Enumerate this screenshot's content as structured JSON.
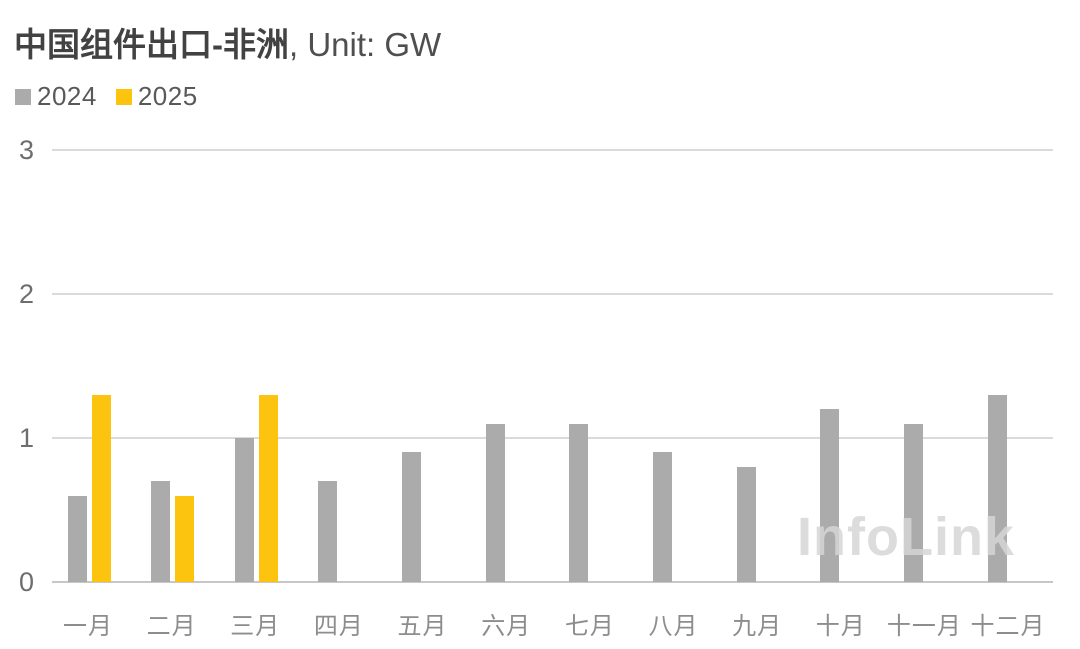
{
  "header": {
    "title_main": "中国组件出口-非洲",
    "title_suffix": ", Unit: GW"
  },
  "legend": {
    "items": [
      {
        "label": "2024",
        "color": "#ABABAB"
      },
      {
        "label": "2025",
        "color": "#FDC40F"
      }
    ]
  },
  "watermark": "InfoLink",
  "colors": {
    "bar_2024": "#ABABAB",
    "bar_2025": "#FDC40F",
    "gridline": "#dadada",
    "axis_line": "#c7c7c7",
    "title_text": "#424242",
    "tick_text": "#6e6e6e",
    "month_text": "#8d8d8d"
  },
  "chart_data": {
    "type": "bar",
    "title": "中国组件出口-非洲, Unit: GW",
    "unit": "GW",
    "categories": [
      "一月",
      "二月",
      "三月",
      "四月",
      "五月",
      "六月",
      "七月",
      "八月",
      "九月",
      "十月",
      "十一月",
      "十二月"
    ],
    "series": [
      {
        "name": "2024",
        "color": "#ABABAB",
        "values": [
          0.6,
          0.7,
          1.0,
          0.7,
          0.9,
          1.1,
          1.1,
          0.9,
          0.8,
          1.2,
          1.1,
          1.3
        ]
      },
      {
        "name": "2025",
        "color": "#FDC40F",
        "values": [
          1.3,
          0.6,
          1.3,
          null,
          null,
          null,
          null,
          null,
          null,
          null,
          null,
          null
        ]
      }
    ],
    "ylim": [
      0,
      3
    ],
    "yticks": [
      0,
      1,
      2,
      3
    ],
    "grid": true,
    "legend_position": "top-left",
    "watermark": "InfoLink"
  }
}
